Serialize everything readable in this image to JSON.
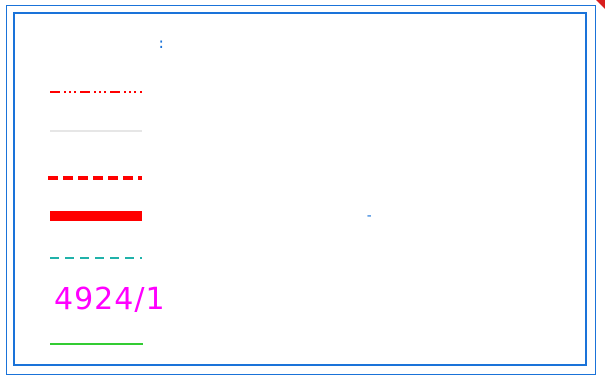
{
  "drawing": {
    "marks": {
      "colon_text": ":",
      "dash_text": "-"
    },
    "legend": {
      "number_label": "4924/1"
    },
    "colors": {
      "frame": "#1a73d9",
      "red": "#ff0000",
      "gray": "#cccccc",
      "cyan": "#20b2aa",
      "magenta": "#ff00ff",
      "green": "#33cc33",
      "corner": "#d81e1e"
    }
  }
}
